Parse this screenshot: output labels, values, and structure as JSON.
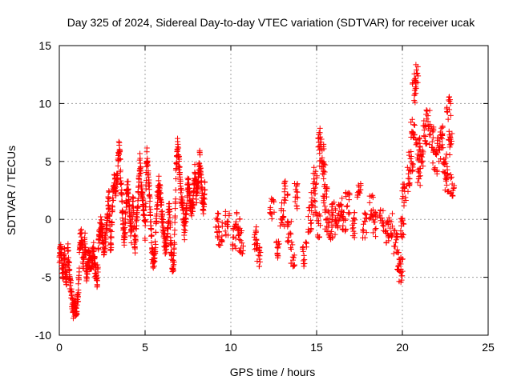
{
  "chart_data": {
    "type": "scatter",
    "title": "Day 325 of 2024, Sidereal Day-to-day VTEC variation (SDTVAR) for receiver ucak",
    "xlabel": "GPS time / hours",
    "ylabel": "SDTVAR / TECUs",
    "xlim": [
      0,
      25
    ],
    "ylim": [
      -10,
      15
    ],
    "xticks": [
      0,
      5,
      10,
      15,
      20,
      25
    ],
    "yticks": [
      -10,
      -5,
      0,
      5,
      10,
      15
    ],
    "xtick_labels": [
      "0",
      "5",
      "10",
      "15",
      "20",
      "25"
    ],
    "ytick_labels": [
      "-10",
      "-5",
      "0",
      "5",
      "10",
      "15"
    ],
    "grid": true,
    "marker": "+",
    "color": "#ff0000",
    "series": [
      {
        "name": "SDTVAR",
        "trace": [
          [
            0.0,
            -3.5
          ],
          [
            0.1,
            -2.5
          ],
          [
            0.2,
            -5.0
          ],
          [
            0.3,
            -3.0
          ],
          [
            0.4,
            -5.5
          ],
          [
            0.5,
            -2.5
          ],
          [
            0.6,
            -5.0
          ],
          [
            0.7,
            -6.5
          ],
          [
            0.8,
            -7.8
          ],
          [
            0.9,
            -7.5
          ],
          [
            1.0,
            -8.0
          ],
          [
            1.1,
            -6.5
          ],
          [
            1.2,
            -2.0
          ],
          [
            1.3,
            -1.5
          ],
          [
            1.4,
            -4.0
          ],
          [
            1.5,
            -1.8
          ],
          [
            1.6,
            -5.5
          ],
          [
            1.7,
            -3.0
          ],
          [
            1.8,
            -4.0
          ],
          [
            1.9,
            -3.5
          ],
          [
            2.0,
            -2.5
          ],
          [
            2.1,
            -4.5
          ],
          [
            2.2,
            -5.5
          ],
          [
            2.3,
            -2.0
          ],
          [
            2.4,
            -0.5
          ],
          [
            2.5,
            -1.0
          ],
          [
            2.6,
            -2.5
          ],
          [
            2.7,
            -1.5
          ],
          [
            2.8,
            0.5
          ],
          [
            2.9,
            2.0
          ],
          [
            3.0,
            -3.0
          ],
          [
            3.1,
            1.0
          ],
          [
            3.2,
            3.5
          ],
          [
            3.3,
            2.5
          ],
          [
            3.4,
            4.0
          ],
          [
            3.5,
            6.8
          ],
          [
            3.6,
            3.0
          ],
          [
            3.7,
            0.0
          ],
          [
            3.8,
            -2.0
          ],
          [
            3.9,
            1.5
          ],
          [
            4.0,
            3.0
          ],
          [
            4.1,
            0.5
          ],
          [
            4.2,
            -1.5
          ],
          [
            4.3,
            1.8
          ],
          [
            4.4,
            -3.0
          ],
          [
            4.5,
            0.0
          ],
          [
            4.6,
            2.0
          ],
          [
            4.7,
            5.0
          ],
          [
            4.8,
            2.5
          ],
          [
            4.9,
            1.0
          ],
          [
            5.0,
            -1.0
          ],
          [
            5.1,
            6.0
          ],
          [
            5.2,
            3.5
          ],
          [
            5.3,
            1.0
          ],
          [
            5.4,
            -2.5
          ],
          [
            5.5,
            -4.0
          ],
          [
            5.6,
            -2.0
          ],
          [
            5.7,
            1.5
          ],
          [
            5.8,
            3.0
          ],
          [
            5.9,
            2.0
          ],
          [
            6.0,
            0.0
          ],
          [
            6.1,
            -1.5
          ],
          [
            6.2,
            -2.5
          ],
          [
            6.3,
            -1.0
          ],
          [
            6.4,
            1.0
          ],
          [
            6.5,
            -2.0
          ],
          [
            6.6,
            -4.5
          ],
          [
            6.7,
            -3.0
          ],
          [
            6.8,
            4.0
          ],
          [
            6.9,
            6.5
          ],
          [
            7.0,
            4.5
          ],
          [
            7.1,
            2.0
          ],
          [
            7.2,
            1.0
          ],
          [
            7.3,
            -1.0
          ],
          [
            7.4,
            0.5
          ],
          [
            7.5,
            3.5
          ],
          [
            7.6,
            2.0
          ],
          [
            7.7,
            0.5
          ],
          [
            7.8,
            1.5
          ],
          [
            7.9,
            4.0
          ],
          [
            8.0,
            2.0
          ],
          [
            8.1,
            3.5
          ],
          [
            8.2,
            5.5
          ],
          [
            8.3,
            2.5
          ],
          [
            8.4,
            1.0
          ],
          [
            8.5,
            3.0
          ]
        ],
        "clusters": [
          [
            9.2,
            -0.5
          ],
          [
            9.4,
            -1.2
          ],
          [
            9.8,
            -0.3
          ],
          [
            10.2,
            -1.5
          ],
          [
            10.4,
            -0.5
          ],
          [
            10.6,
            -2.0
          ],
          [
            11.4,
            -1.5
          ],
          [
            11.6,
            -3.0
          ],
          [
            12.4,
            1.0
          ],
          [
            12.7,
            -2.8
          ],
          [
            13.0,
            0.5
          ],
          [
            13.2,
            2.5
          ],
          [
            13.4,
            -1.0
          ],
          [
            13.6,
            -3.0
          ],
          [
            13.8,
            2.0
          ],
          [
            14.3,
            -3.0
          ],
          [
            14.6,
            0.0
          ],
          [
            14.8,
            1.5
          ],
          [
            14.9,
            3.5
          ],
          [
            15.1,
            -0.5
          ],
          [
            15.2,
            7.0
          ],
          [
            15.3,
            5.5
          ],
          [
            15.4,
            4.0
          ],
          [
            15.5,
            2.0
          ],
          [
            15.6,
            0.0
          ],
          [
            15.8,
            -1.0
          ],
          [
            16.0,
            0.5
          ],
          [
            16.2,
            -0.5
          ],
          [
            16.4,
            1.0
          ],
          [
            16.6,
            0.0
          ],
          [
            16.8,
            1.5
          ],
          [
            17.2,
            -0.5
          ],
          [
            17.5,
            2.0
          ],
          [
            17.8,
            -0.5
          ],
          [
            18.2,
            1.0
          ],
          [
            18.4,
            -0.5
          ],
          [
            18.8,
            -0.2
          ],
          [
            19.1,
            -1.0
          ],
          [
            19.3,
            -0.5
          ],
          [
            19.6,
            -2.0
          ],
          [
            19.8,
            -3.5
          ],
          [
            19.9,
            -4.5
          ],
          [
            20.0,
            -1.0
          ],
          [
            20.1,
            2.0
          ],
          [
            20.3,
            3.5
          ],
          [
            20.5,
            5.0
          ],
          [
            20.6,
            8.0
          ],
          [
            20.7,
            11.0
          ],
          [
            20.8,
            12.3
          ],
          [
            20.9,
            6.0
          ],
          [
            21.0,
            4.0
          ],
          [
            21.1,
            5.5
          ],
          [
            21.3,
            7.5
          ],
          [
            21.5,
            8.5
          ],
          [
            21.7,
            7.0
          ],
          [
            21.9,
            5.0
          ],
          [
            22.1,
            6.0
          ],
          [
            22.3,
            7.0
          ],
          [
            22.5,
            5.0
          ],
          [
            22.6,
            3.5
          ],
          [
            22.7,
            9.5
          ],
          [
            22.8,
            6.5
          ],
          [
            22.9,
            3.0
          ]
        ]
      }
    ]
  }
}
